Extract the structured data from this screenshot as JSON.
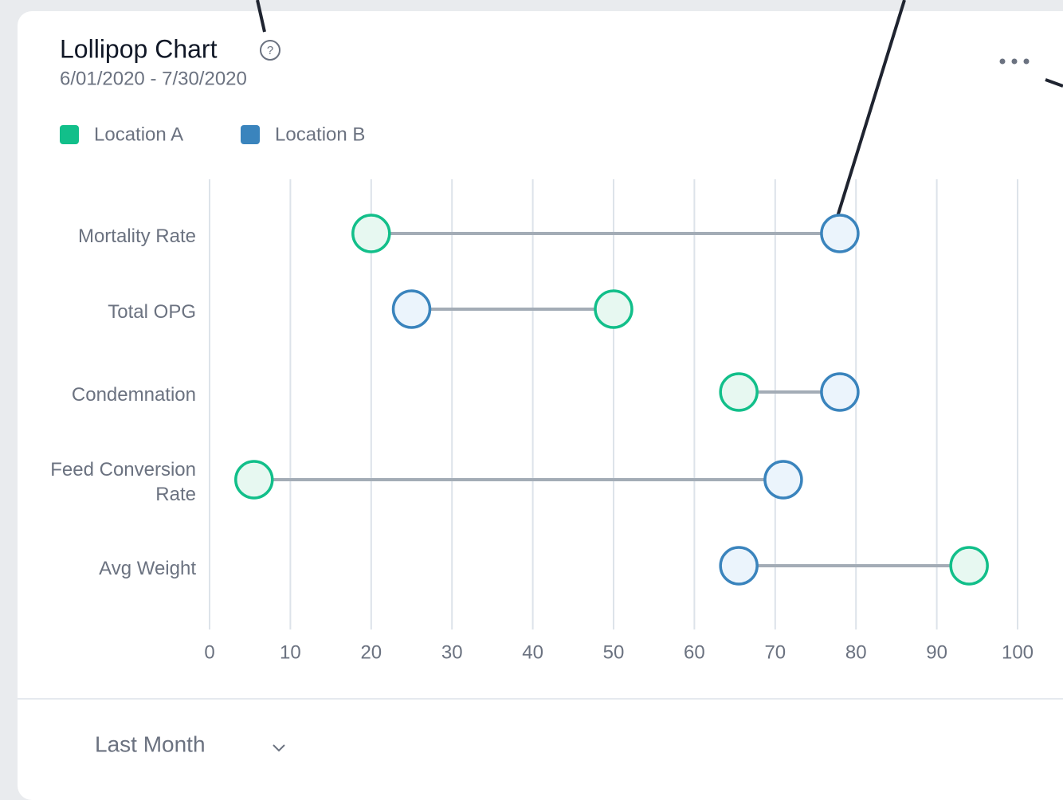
{
  "chart_data": {
    "type": "lollipop",
    "title": "Lollipop Chart",
    "subtitle": "6/01/2020 - 7/30/2020",
    "categories": [
      "Mortality Rate",
      "Total OPG",
      "Condemnation",
      "Feed Conversion Rate",
      "Avg Weight"
    ],
    "series": [
      {
        "name": "Location A",
        "color": "#12bf8a",
        "values": [
          20,
          50,
          65.5,
          5.5,
          94
        ]
      },
      {
        "name": "Location B",
        "color": "#3a84bd",
        "values": [
          78,
          25,
          78,
          71,
          65.5
        ]
      }
    ],
    "xlim": [
      0,
      100
    ],
    "xticks": [
      0,
      10,
      20,
      30,
      40,
      50,
      60,
      70,
      80,
      90,
      100
    ],
    "grid": true
  },
  "footer": {
    "period": "Last Month"
  }
}
